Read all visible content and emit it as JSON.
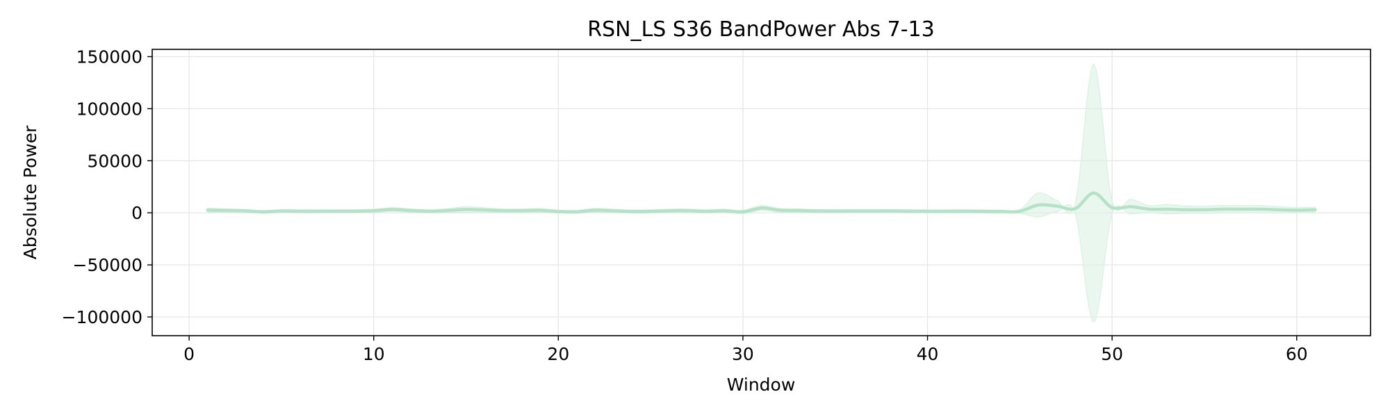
{
  "chart_data": {
    "type": "line",
    "title": "RSN_LS S36 BandPower Abs 7-13",
    "xlabel": "Window",
    "ylabel": "Absolute Power",
    "xlim": [
      -2,
      64
    ],
    "ylim": [
      -118000,
      157000
    ],
    "xticks": [
      0,
      10,
      20,
      30,
      40,
      50,
      60
    ],
    "xtick_labels": [
      "0",
      "10",
      "20",
      "30",
      "40",
      "50",
      "60"
    ],
    "yticks": [
      -100000,
      -50000,
      0,
      50000,
      100000,
      150000
    ],
    "ytick_labels": [
      "−100000",
      "−50000",
      "0",
      "50000",
      "100000",
      "150000"
    ],
    "grid": true,
    "colors": {
      "line": "#b5e2c6",
      "band": "#d9f1e2",
      "grid": "#e6e6e6",
      "frame": "#000000"
    },
    "series": [
      {
        "x": [
          1,
          2,
          3,
          4,
          5,
          6,
          7,
          8,
          9,
          10,
          11,
          12,
          13,
          14,
          15,
          16,
          17,
          18,
          19,
          20,
          21,
          22,
          23,
          24,
          25,
          26,
          27,
          28,
          29,
          30,
          31,
          32,
          33,
          34,
          35,
          36,
          37,
          38,
          39,
          40,
          41,
          42,
          43,
          44,
          45,
          46,
          47,
          48,
          49,
          50,
          51,
          52,
          53,
          54,
          55,
          56,
          57,
          58,
          59,
          60,
          61
        ],
        "mean": [
          2600,
          2300,
          1900,
          900,
          1700,
          1500,
          1500,
          1600,
          1600,
          2000,
          3200,
          2200,
          1500,
          2200,
          3200,
          2800,
          2100,
          2100,
          2400,
          1200,
          1000,
          2500,
          1900,
          1200,
          1400,
          1900,
          2100,
          1400,
          1900,
          900,
          4600,
          2500,
          2200,
          1700,
          1600,
          1700,
          1700,
          1700,
          1600,
          1400,
          1400,
          1500,
          1300,
          1200,
          1400,
          7500,
          6500,
          4000,
          19000,
          5000,
          6000,
          3500,
          3500,
          3000,
          3000,
          3500,
          3500,
          3500,
          3000,
          2500,
          3000
        ],
        "upper": [
          4500,
          3800,
          3300,
          2300,
          3000,
          2900,
          2900,
          3000,
          3000,
          3500,
          5000,
          3800,
          2900,
          4000,
          5800,
          4800,
          3700,
          3700,
          4100,
          2600,
          2400,
          4300,
          3400,
          2700,
          2900,
          3500,
          3700,
          2900,
          3500,
          2400,
          7000,
          4200,
          3800,
          3200,
          3100,
          3200,
          3200,
          3200,
          3100,
          2900,
          2900,
          3000,
          2800,
          2700,
          3200,
          19000,
          12000,
          8500,
          143000,
          11000,
          13000,
          7000,
          8000,
          6500,
          6500,
          7000,
          7000,
          7000,
          6000,
          5000,
          5500
        ],
        "lower": [
          700,
          800,
          500,
          -500,
          400,
          100,
          100,
          200,
          200,
          500,
          1400,
          600,
          100,
          400,
          600,
          800,
          500,
          500,
          700,
          -200,
          -400,
          700,
          400,
          -300,
          -100,
          300,
          500,
          -100,
          300,
          -600,
          2200,
          800,
          600,
          200,
          100,
          200,
          200,
          200,
          100,
          -100,
          -100,
          0,
          -200,
          -300,
          -400,
          -4000,
          1000,
          -500,
          -105000,
          -1000,
          -1000,
          0,
          -1000,
          -500,
          -500,
          0,
          0,
          0,
          0,
          0,
          500
        ]
      }
    ]
  }
}
